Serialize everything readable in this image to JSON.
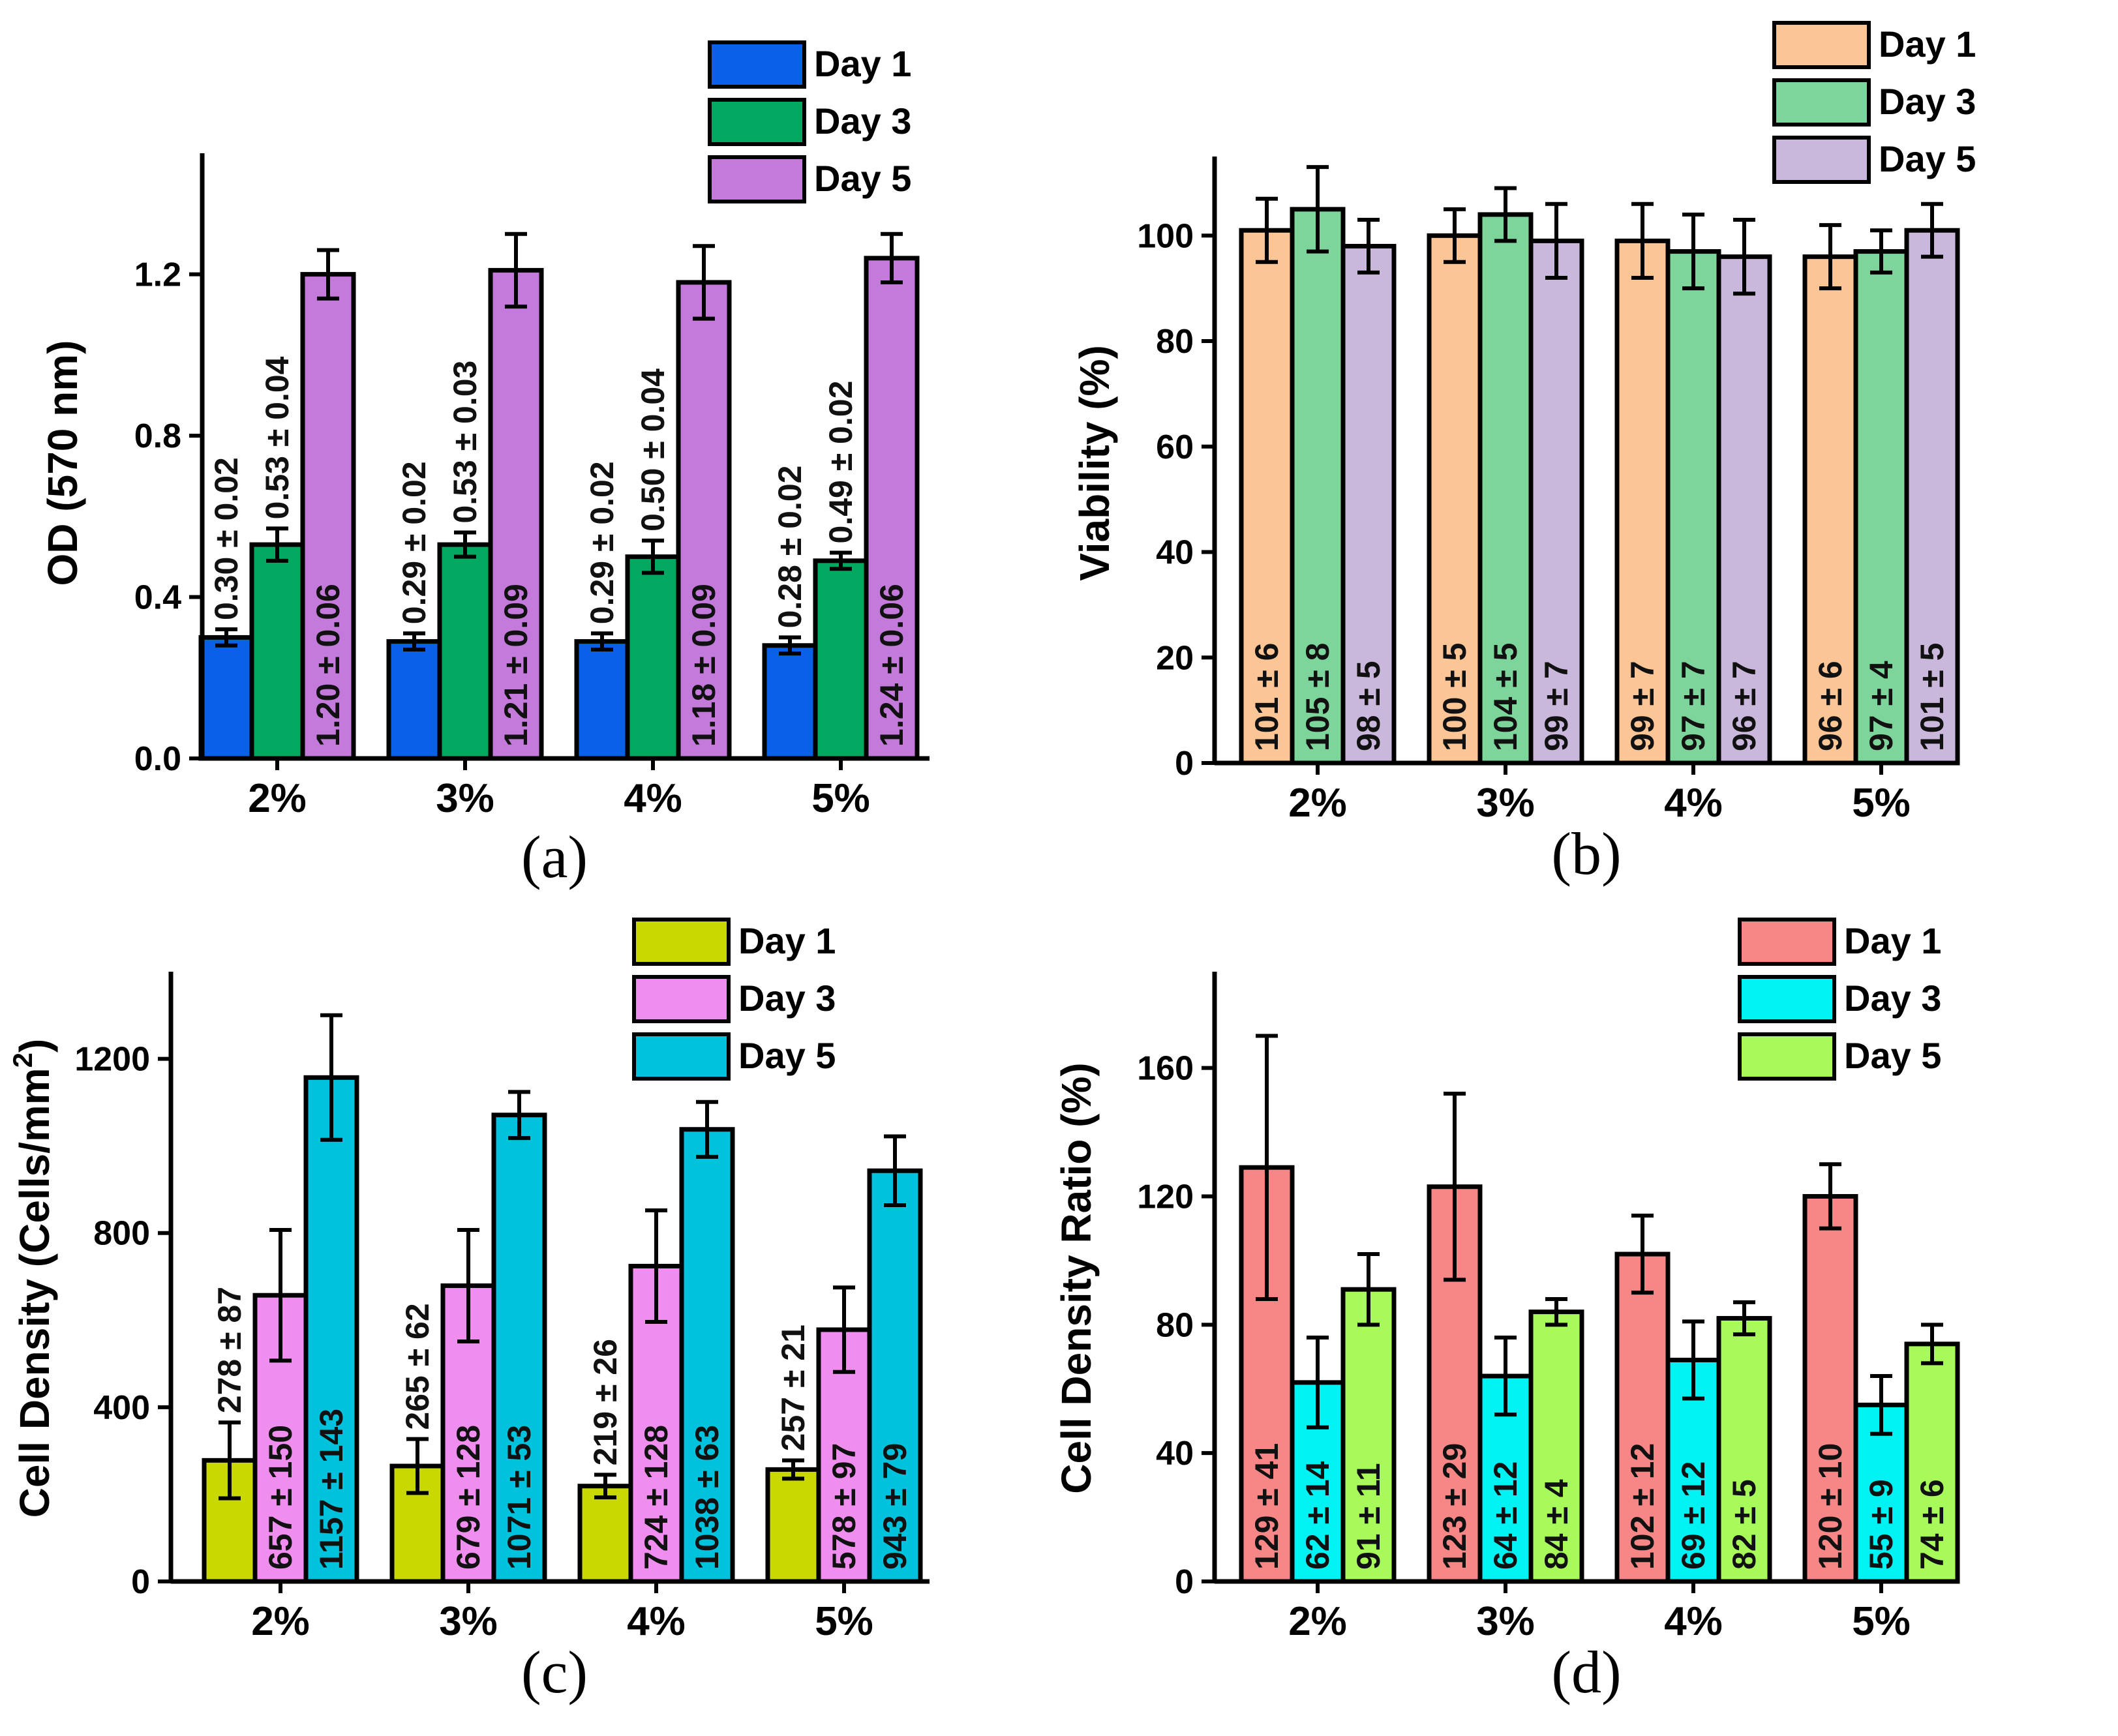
{
  "figure": {
    "groups": [
      "2%",
      "3%",
      "4%",
      "5%"
    ],
    "series_names": [
      "Day 1",
      "Day 3",
      "Day 5"
    ]
  },
  "chart_data": [
    {
      "panel": "(a)",
      "type": "bar",
      "ylabel": "OD (570 nm)",
      "ylim": [
        0,
        1.5
      ],
      "yticks": [
        0.0,
        0.4,
        0.8,
        1.2
      ],
      "ytick_labels": [
        "0.0",
        "0.4",
        "0.8",
        "1.2"
      ],
      "legend_position": "top-right",
      "categories": [
        "2%",
        "3%",
        "4%",
        "5%"
      ],
      "series": [
        {
          "name": "Day 1",
          "color": "#0a60e6",
          "values": [
            0.3,
            0.29,
            0.29,
            0.28
          ],
          "errors": [
            0.02,
            0.02,
            0.02,
            0.02
          ],
          "labels": [
            "0.30 ± 0.02",
            "0.29 ± 0.02",
            "0.29 ± 0.02",
            "0.28 ± 0.02"
          ],
          "label_pos": "above"
        },
        {
          "name": "Day 3",
          "color": "#00a860",
          "values": [
            0.53,
            0.53,
            0.5,
            0.49
          ],
          "errors": [
            0.04,
            0.03,
            0.04,
            0.02
          ],
          "labels": [
            "0.53 ± 0.04",
            "0.53 ± 0.03",
            "0.50 ± 0.04",
            "0.49 ± 0.02"
          ],
          "label_pos": "above"
        },
        {
          "name": "Day 5",
          "color": "#c37adb",
          "values": [
            1.2,
            1.21,
            1.18,
            1.24
          ],
          "errors": [
            0.06,
            0.09,
            0.09,
            0.06
          ],
          "labels": [
            "1.20 ± 0.06",
            "1.21 ± 0.09",
            "1.18 ± 0.09",
            "1.24 ± 0.06"
          ],
          "label_pos": "inside"
        }
      ]
    },
    {
      "panel": "(b)",
      "type": "bar",
      "ylabel": "Viability (%)",
      "ylim": [
        0,
        115
      ],
      "yticks": [
        0,
        20,
        40,
        60,
        80,
        100
      ],
      "ytick_labels": [
        "0",
        "20",
        "40",
        "60",
        "80",
        "100"
      ],
      "legend_position": "top-right",
      "categories": [
        "2%",
        "3%",
        "4%",
        "5%"
      ],
      "series": [
        {
          "name": "Day 1",
          "color": "#fcc596",
          "values": [
            101,
            100,
            99,
            96
          ],
          "errors": [
            6,
            5,
            7,
            6
          ],
          "labels": [
            "101 ± 6",
            "100 ± 5",
            "99 ± 7",
            "96 ± 6"
          ],
          "label_pos": "inside"
        },
        {
          "name": "Day 3",
          "color": "#7ed59c",
          "values": [
            105,
            104,
            97,
            97
          ],
          "errors": [
            8,
            5,
            7,
            4
          ],
          "labels": [
            "105 ± 8",
            "104 ± 5",
            "97 ± 7",
            "97 ± 4"
          ],
          "label_pos": "inside"
        },
        {
          "name": "Day 5",
          "color": "#cab8dc",
          "values": [
            98,
            99,
            96,
            101
          ],
          "errors": [
            5,
            7,
            7,
            5
          ],
          "labels": [
            "98 ± 5",
            "99 ± 7",
            "96 ± 7",
            "101 ± 5"
          ],
          "label_pos": "inside"
        }
      ]
    },
    {
      "panel": "(c)",
      "type": "bar",
      "ylabel": "Cell Density (Cells/mm",
      "ylabel_superscript": "2",
      "ylabel_close": ")",
      "ylim": [
        0,
        1400
      ],
      "yticks": [
        0,
        400,
        800,
        1200
      ],
      "ytick_labels": [
        "0",
        "400",
        "800",
        "1200"
      ],
      "legend_position": "top-right",
      "categories": [
        "2%",
        "3%",
        "4%",
        "5%"
      ],
      "series": [
        {
          "name": "Day 1",
          "color": "#c8d800",
          "values": [
            278,
            265,
            219,
            257
          ],
          "errors": [
            87,
            62,
            26,
            21
          ],
          "labels": [
            "278 ± 87",
            "265 ± 62",
            "219 ± 26",
            "257 ± 21"
          ],
          "label_pos": "above"
        },
        {
          "name": "Day 3",
          "color": "#f08ef0",
          "values": [
            657,
            679,
            724,
            578
          ],
          "errors": [
            150,
            128,
            128,
            97
          ],
          "labels": [
            "657 ± 150",
            "679 ± 128",
            "724 ± 128",
            "578 ± 97"
          ],
          "label_pos": "inside"
        },
        {
          "name": "Day 5",
          "color": "#00c2dc",
          "values": [
            1157,
            1071,
            1038,
            943
          ],
          "errors": [
            143,
            53,
            63,
            79
          ],
          "labels": [
            "1157 ± 143",
            "1071 ± 53",
            "1038 ± 63",
            "943 ± 79"
          ],
          "label_pos": "inside"
        }
      ]
    },
    {
      "panel": "(d)",
      "type": "bar",
      "ylabel": "Cell Density Ratio (%)",
      "ylim": [
        0,
        190
      ],
      "yticks": [
        0,
        40,
        80,
        120,
        160
      ],
      "ytick_labels": [
        "0",
        "40",
        "80",
        "120",
        "160"
      ],
      "legend_position": "top-right",
      "categories": [
        "2%",
        "3%",
        "4%",
        "5%"
      ],
      "series": [
        {
          "name": "Day 1",
          "color": "#f78787",
          "values": [
            129,
            123,
            102,
            120
          ],
          "errors": [
            41,
            29,
            12,
            10
          ],
          "labels": [
            "129 ± 41",
            "123 ± 29",
            "102 ± 12",
            "120 ± 10"
          ],
          "label_pos": "inside"
        },
        {
          "name": "Day 3",
          "color": "#00f2f2",
          "values": [
            62,
            64,
            69,
            55
          ],
          "errors": [
            14,
            12,
            12,
            9
          ],
          "labels": [
            "62 ± 14",
            "64 ± 12",
            "69 ± 12",
            "55 ± 9"
          ],
          "label_pos": "inside"
        },
        {
          "name": "Day 5",
          "color": "#a8fa5a",
          "values": [
            91,
            84,
            82,
            74
          ],
          "errors": [
            11,
            4,
            5,
            6
          ],
          "labels": [
            "91 ± 11",
            "84 ± 4",
            "82 ± 5",
            "74 ± 6"
          ],
          "label_pos": "inside"
        }
      ]
    }
  ]
}
